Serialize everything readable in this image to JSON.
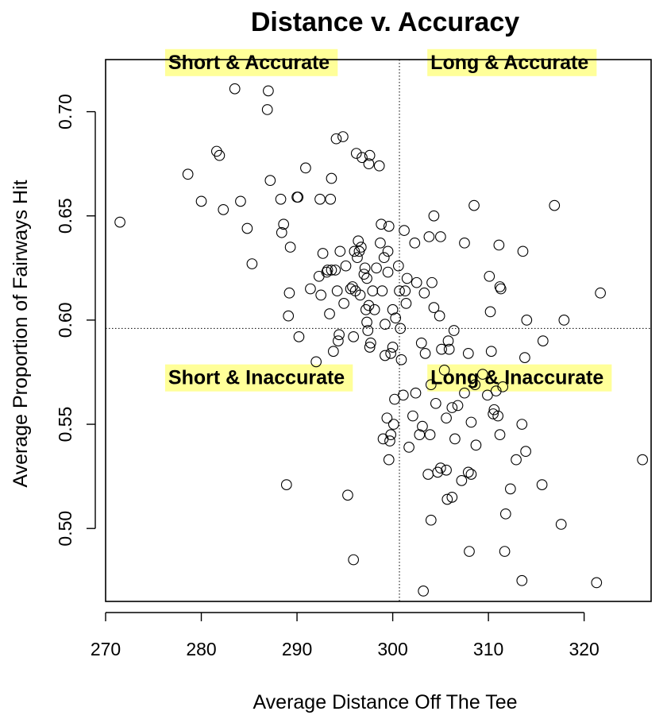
{
  "chart_data": {
    "type": "scatter",
    "title": "Distance v. Accuracy",
    "xlabel": "Average Distance Off The Tee",
    "ylabel": "Average Proportion of Fairways Hit",
    "xlim": [
      270,
      327
    ],
    "ylim": [
      0.465,
      0.725
    ],
    "xticks": [
      270,
      280,
      290,
      300,
      310,
      320
    ],
    "yticks": [
      0.5,
      0.55,
      0.6,
      0.65,
      0.7
    ],
    "ytick_labels": [
      "0.50",
      "0.55",
      "0.60",
      "0.65",
      "0.70"
    ],
    "grid": false,
    "vline_x": 300.7,
    "hline_y": 0.596,
    "highlight_color": "#ffff99",
    "quadrant_labels": [
      {
        "text": "Short & Accurate",
        "x": 276.3,
        "y": 0.7205
      },
      {
        "text": "Long & Accurate",
        "x": 303.7,
        "y": 0.7205
      },
      {
        "text": "Short & Inaccurate",
        "x": 276.3,
        "y": 0.5692
      },
      {
        "text": "Long & Inaccurate",
        "x": 303.7,
        "y": 0.5692
      }
    ],
    "points": [
      [
        271.5,
        0.647
      ],
      [
        278.6,
        0.67
      ],
      [
        280.0,
        0.657
      ],
      [
        281.6,
        0.681
      ],
      [
        281.9,
        0.679
      ],
      [
        282.3,
        0.653
      ],
      [
        283.5,
        0.711
      ],
      [
        284.1,
        0.657
      ],
      [
        284.8,
        0.644
      ],
      [
        285.3,
        0.627
      ],
      [
        286.9,
        0.701
      ],
      [
        287.0,
        0.71
      ],
      [
        287.2,
        0.667
      ],
      [
        288.3,
        0.658
      ],
      [
        288.4,
        0.642
      ],
      [
        288.6,
        0.646
      ],
      [
        289.1,
        0.602
      ],
      [
        289.2,
        0.613
      ],
      [
        289.3,
        0.635
      ],
      [
        288.9,
        0.521
      ],
      [
        290.0,
        0.659
      ],
      [
        290.1,
        0.659
      ],
      [
        290.2,
        0.592
      ],
      [
        290.9,
        0.673
      ],
      [
        291.4,
        0.615
      ],
      [
        292.0,
        0.58
      ],
      [
        292.3,
        0.621
      ],
      [
        292.4,
        0.658
      ],
      [
        292.5,
        0.612
      ],
      [
        292.7,
        0.632
      ],
      [
        293.1,
        0.623
      ],
      [
        293.2,
        0.624
      ],
      [
        293.4,
        0.603
      ],
      [
        293.5,
        0.658
      ],
      [
        293.6,
        0.624
      ],
      [
        293.6,
        0.668
      ],
      [
        293.8,
        0.585
      ],
      [
        294.0,
        0.624
      ],
      [
        294.1,
        0.687
      ],
      [
        294.2,
        0.614
      ],
      [
        294.3,
        0.59
      ],
      [
        294.4,
        0.593
      ],
      [
        294.5,
        0.633
      ],
      [
        294.8,
        0.688
      ],
      [
        294.9,
        0.608
      ],
      [
        295.1,
        0.626
      ],
      [
        295.3,
        0.516
      ],
      [
        295.6,
        0.615
      ],
      [
        295.8,
        0.616
      ],
      [
        295.9,
        0.485
      ],
      [
        295.9,
        0.592
      ],
      [
        296.0,
        0.633
      ],
      [
        296.1,
        0.614
      ],
      [
        296.2,
        0.68
      ],
      [
        296.3,
        0.63
      ],
      [
        296.4,
        0.638
      ],
      [
        296.5,
        0.633
      ],
      [
        296.6,
        0.612
      ],
      [
        296.7,
        0.635
      ],
      [
        296.8,
        0.678
      ],
      [
        297.0,
        0.622
      ],
      [
        297.1,
        0.625
      ],
      [
        297.2,
        0.605
      ],
      [
        297.3,
        0.62
      ],
      [
        297.3,
        0.599
      ],
      [
        297.4,
        0.595
      ],
      [
        297.5,
        0.607
      ],
      [
        297.5,
        0.675
      ],
      [
        297.6,
        0.679
      ],
      [
        297.6,
        0.587
      ],
      [
        297.7,
        0.589
      ],
      [
        297.9,
        0.614
      ],
      [
        298.1,
        0.605
      ],
      [
        298.3,
        0.625
      ],
      [
        298.6,
        0.674
      ],
      [
        298.7,
        0.637
      ],
      [
        298.8,
        0.646
      ],
      [
        298.9,
        0.614
      ],
      [
        299.0,
        0.543
      ],
      [
        299.1,
        0.63
      ],
      [
        299.2,
        0.598
      ],
      [
        299.2,
        0.583
      ],
      [
        299.4,
        0.553
      ],
      [
        299.5,
        0.633
      ],
      [
        299.5,
        0.623
      ],
      [
        299.6,
        0.645
      ],
      [
        299.6,
        0.533
      ],
      [
        299.7,
        0.542
      ],
      [
        299.8,
        0.584
      ],
      [
        299.8,
        0.545
      ],
      [
        300.0,
        0.587
      ],
      [
        300.0,
        0.605
      ],
      [
        300.1,
        0.55
      ],
      [
        300.2,
        0.562
      ],
      [
        300.3,
        0.601
      ],
      [
        300.6,
        0.626
      ],
      [
        300.7,
        0.614
      ],
      [
        300.8,
        0.596
      ],
      [
        300.9,
        0.581
      ],
      [
        301.1,
        0.564
      ],
      [
        301.2,
        0.643
      ],
      [
        301.3,
        0.614
      ],
      [
        301.4,
        0.608
      ],
      [
        301.5,
        0.62
      ],
      [
        301.7,
        0.539
      ],
      [
        302.1,
        0.554
      ],
      [
        302.3,
        0.637
      ],
      [
        302.4,
        0.565
      ],
      [
        302.5,
        0.618
      ],
      [
        302.8,
        0.545
      ],
      [
        303.0,
        0.589
      ],
      [
        303.1,
        0.549
      ],
      [
        303.2,
        0.47
      ],
      [
        303.3,
        0.613
      ],
      [
        303.4,
        0.584
      ],
      [
        303.7,
        0.526
      ],
      [
        303.8,
        0.64
      ],
      [
        303.9,
        0.545
      ],
      [
        304.0,
        0.569
      ],
      [
        304.0,
        0.504
      ],
      [
        304.1,
        0.618
      ],
      [
        304.3,
        0.606
      ],
      [
        304.3,
        0.65
      ],
      [
        304.5,
        0.56
      ],
      [
        304.7,
        0.527
      ],
      [
        304.9,
        0.602
      ],
      [
        305.0,
        0.529
      ],
      [
        305.0,
        0.64
      ],
      [
        305.1,
        0.586
      ],
      [
        305.4,
        0.576
      ],
      [
        305.6,
        0.528
      ],
      [
        305.6,
        0.553
      ],
      [
        305.7,
        0.514
      ],
      [
        305.8,
        0.59
      ],
      [
        305.9,
        0.586
      ],
      [
        306.2,
        0.558
      ],
      [
        306.4,
        0.595
      ],
      [
        306.5,
        0.543
      ],
      [
        306.2,
        0.515
      ],
      [
        306.8,
        0.559
      ],
      [
        307.2,
        0.523
      ],
      [
        307.5,
        0.637
      ],
      [
        307.5,
        0.565
      ],
      [
        307.9,
        0.584
      ],
      [
        307.9,
        0.527
      ],
      [
        308.0,
        0.489
      ],
      [
        308.2,
        0.551
      ],
      [
        308.2,
        0.526
      ],
      [
        308.5,
        0.655
      ],
      [
        308.7,
        0.54
      ],
      [
        308.6,
        0.569
      ],
      [
        309.4,
        0.574
      ],
      [
        309.9,
        0.564
      ],
      [
        310.1,
        0.621
      ],
      [
        310.2,
        0.604
      ],
      [
        310.3,
        0.585
      ],
      [
        310.5,
        0.555
      ],
      [
        310.6,
        0.557
      ],
      [
        310.8,
        0.566
      ],
      [
        311.0,
        0.554
      ],
      [
        311.1,
        0.636
      ],
      [
        311.2,
        0.545
      ],
      [
        311.2,
        0.616
      ],
      [
        311.3,
        0.615
      ],
      [
        311.5,
        0.568
      ],
      [
        311.7,
        0.489
      ],
      [
        311.8,
        0.507
      ],
      [
        312.3,
        0.519
      ],
      [
        312.9,
        0.533
      ],
      [
        313.5,
        0.55
      ],
      [
        313.5,
        0.475
      ],
      [
        313.6,
        0.633
      ],
      [
        313.8,
        0.582
      ],
      [
        313.9,
        0.537
      ],
      [
        314.0,
        0.6
      ],
      [
        315.6,
        0.521
      ],
      [
        315.7,
        0.59
      ],
      [
        316.9,
        0.655
      ],
      [
        317.6,
        0.502
      ],
      [
        317.9,
        0.6
      ],
      [
        321.3,
        0.474
      ],
      [
        321.7,
        0.613
      ],
      [
        326.1,
        0.533
      ]
    ]
  }
}
